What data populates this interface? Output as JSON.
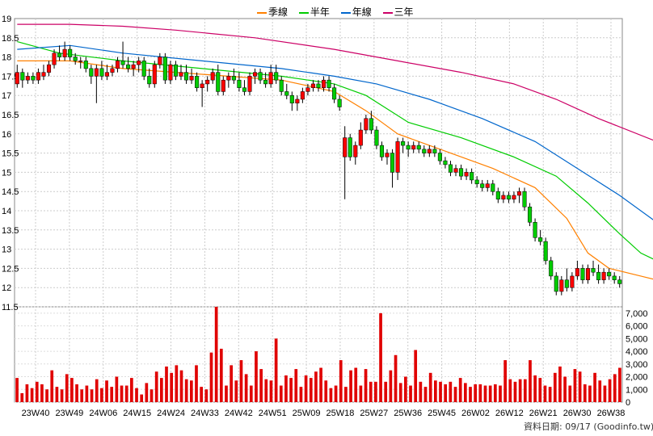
{
  "legend": [
    {
      "label": "季線",
      "color": "#ff8000"
    },
    {
      "label": "半年",
      "color": "#00cc00"
    },
    {
      "label": "年線",
      "color": "#0066cc"
    },
    {
      "label": "三年",
      "color": "#cc0066"
    }
  ],
  "footer": {
    "date": "資料日期: 09/17",
    "source": "(Goodinfo.tw)"
  },
  "chart_data": [
    {
      "type": "candlestick",
      "title": "",
      "price_axis": {
        "min": 11.5,
        "max": 19,
        "ticks": [
          "19",
          "18.5",
          "18",
          "17.5",
          "17",
          "16.5",
          "16",
          "15.5",
          "15",
          "14.5",
          "14",
          "13.5",
          "13",
          "12.5",
          "12",
          "11.5"
        ]
      },
      "x_ticks": [
        "23W40",
        "23W49",
        "24W06",
        "24W15",
        "24W24",
        "24W33",
        "24W42",
        "24W51",
        "25W09",
        "25W18",
        "25W27",
        "25W36",
        "25W45",
        "26W02",
        "26W12",
        "26W21",
        "26W30",
        "26W38"
      ],
      "ohlc": [
        [
          17.3,
          17.8,
          17.2,
          17.6
        ],
        [
          17.6,
          17.7,
          17.2,
          17.4
        ],
        [
          17.4,
          17.6,
          17.3,
          17.5
        ],
        [
          17.5,
          17.6,
          17.3,
          17.4
        ],
        [
          17.4,
          17.7,
          17.3,
          17.6
        ],
        [
          17.5,
          17.8,
          17.4,
          17.6
        ],
        [
          17.6,
          17.9,
          17.5,
          17.8
        ],
        [
          17.8,
          18.2,
          17.7,
          18.1
        ],
        [
          18.1,
          18.3,
          17.9,
          18.0
        ],
        [
          18.0,
          18.4,
          17.9,
          18.2
        ],
        [
          18.2,
          18.3,
          17.9,
          18.0
        ],
        [
          18.0,
          18.1,
          17.8,
          17.9
        ],
        [
          17.9,
          18.0,
          17.7,
          17.9
        ],
        [
          17.9,
          18.0,
          17.6,
          17.7
        ],
        [
          17.7,
          17.8,
          17.3,
          17.5
        ],
        [
          17.5,
          17.8,
          16.8,
          17.7
        ],
        [
          17.7,
          17.9,
          17.4,
          17.5
        ],
        [
          17.5,
          17.8,
          17.4,
          17.6
        ],
        [
          17.6,
          17.8,
          17.5,
          17.7
        ],
        [
          17.7,
          18.0,
          17.6,
          17.9
        ],
        [
          17.9,
          18.4,
          17.7,
          17.8
        ],
        [
          17.8,
          18.0,
          17.6,
          17.7
        ],
        [
          17.7,
          17.9,
          17.5,
          17.8
        ],
        [
          17.8,
          18.0,
          17.6,
          17.9
        ],
        [
          17.9,
          18.0,
          17.4,
          17.5
        ],
        [
          17.5,
          17.7,
          17.2,
          17.3
        ],
        [
          17.3,
          17.9,
          17.2,
          17.8
        ],
        [
          17.8,
          18.1,
          17.7,
          18.0
        ],
        [
          18.0,
          18.1,
          17.3,
          17.4
        ],
        [
          17.4,
          17.9,
          17.3,
          17.8
        ],
        [
          17.8,
          17.9,
          17.4,
          17.5
        ],
        [
          17.5,
          17.8,
          17.4,
          17.6
        ],
        [
          17.6,
          17.8,
          17.3,
          17.4
        ],
        [
          17.4,
          17.7,
          17.3,
          17.5
        ],
        [
          17.5,
          17.6,
          17.1,
          17.2
        ],
        [
          17.2,
          17.4,
          16.7,
          17.3
        ],
        [
          17.3,
          17.5,
          17.1,
          17.4
        ],
        [
          17.4,
          17.7,
          17.3,
          17.6
        ],
        [
          17.6,
          17.8,
          17.0,
          17.1
        ],
        [
          17.1,
          17.5,
          17.0,
          17.4
        ],
        [
          17.4,
          17.6,
          17.2,
          17.5
        ],
        [
          17.5,
          17.7,
          17.3,
          17.4
        ],
        [
          17.4,
          17.6,
          17.1,
          17.2
        ],
        [
          17.2,
          17.4,
          17.0,
          17.1
        ],
        [
          17.1,
          17.6,
          17.0,
          17.5
        ],
        [
          17.5,
          17.7,
          17.3,
          17.6
        ],
        [
          17.6,
          17.7,
          17.3,
          17.4
        ],
        [
          17.4,
          17.6,
          17.2,
          17.3
        ],
        [
          17.3,
          17.8,
          17.2,
          17.6
        ],
        [
          17.6,
          17.8,
          17.3,
          17.4
        ],
        [
          17.4,
          17.5,
          17.0,
          17.1
        ],
        [
          17.1,
          17.3,
          16.9,
          17.0
        ],
        [
          17.0,
          17.1,
          16.6,
          16.8
        ],
        [
          16.8,
          17.0,
          16.6,
          16.9
        ],
        [
          16.9,
          17.2,
          16.8,
          17.1
        ],
        [
          17.1,
          17.3,
          17.0,
          17.2
        ],
        [
          17.2,
          17.4,
          17.1,
          17.3
        ],
        [
          17.3,
          17.4,
          17.1,
          17.2
        ],
        [
          17.2,
          17.5,
          17.1,
          17.4
        ],
        [
          17.4,
          17.5,
          17.1,
          17.2
        ],
        [
          17.2,
          17.3,
          16.8,
          16.9
        ],
        [
          16.9,
          17.0,
          16.6,
          16.7
        ],
        [
          15.4,
          16.2,
          14.3,
          15.9
        ],
        [
          15.9,
          16.0,
          15.3,
          15.4
        ],
        [
          15.4,
          15.8,
          15.2,
          15.7
        ],
        [
          15.7,
          16.3,
          15.6,
          16.1
        ],
        [
          16.1,
          16.5,
          16.0,
          16.4
        ],
        [
          16.4,
          16.6,
          16.0,
          16.1
        ],
        [
          16.1,
          16.2,
          15.6,
          15.7
        ],
        [
          15.7,
          15.8,
          15.3,
          15.4
        ],
        [
          15.4,
          15.6,
          15.2,
          15.5
        ],
        [
          15.5,
          15.6,
          14.6,
          15.0
        ],
        [
          15.0,
          15.9,
          14.8,
          15.8
        ],
        [
          15.8,
          15.9,
          15.5,
          15.7
        ],
        [
          15.7,
          15.8,
          15.4,
          15.6
        ],
        [
          15.6,
          15.8,
          15.5,
          15.7
        ],
        [
          15.7,
          15.8,
          15.5,
          15.6
        ],
        [
          15.6,
          15.7,
          15.4,
          15.5
        ],
        [
          15.5,
          15.7,
          15.4,
          15.6
        ],
        [
          15.6,
          15.7,
          15.4,
          15.5
        ],
        [
          15.5,
          15.6,
          15.2,
          15.3
        ],
        [
          15.3,
          15.4,
          15.1,
          15.2
        ],
        [
          15.2,
          15.3,
          14.9,
          15.0
        ],
        [
          15.0,
          15.2,
          14.9,
          15.1
        ],
        [
          15.1,
          15.2,
          14.8,
          14.9
        ],
        [
          14.9,
          15.1,
          14.8,
          15.0
        ],
        [
          15.0,
          15.1,
          14.7,
          14.8
        ],
        [
          14.8,
          14.9,
          14.6,
          14.7
        ],
        [
          14.7,
          14.8,
          14.5,
          14.6
        ],
        [
          14.6,
          14.8,
          14.5,
          14.7
        ],
        [
          14.7,
          14.8,
          14.4,
          14.5
        ],
        [
          14.5,
          14.6,
          14.2,
          14.3
        ],
        [
          14.3,
          14.5,
          14.2,
          14.4
        ],
        [
          14.4,
          14.5,
          14.2,
          14.3
        ],
        [
          14.3,
          14.5,
          14.2,
          14.4
        ],
        [
          14.4,
          14.6,
          14.2,
          14.5
        ],
        [
          14.5,
          14.6,
          14.0,
          14.1
        ],
        [
          14.1,
          14.2,
          13.6,
          13.7
        ],
        [
          13.7,
          13.8,
          13.2,
          13.3
        ],
        [
          13.3,
          13.5,
          13.1,
          13.2
        ],
        [
          13.2,
          13.3,
          12.6,
          12.7
        ],
        [
          12.7,
          12.8,
          12.2,
          12.3
        ],
        [
          12.3,
          12.4,
          11.8,
          11.9
        ],
        [
          11.9,
          12.3,
          11.8,
          12.2
        ],
        [
          12.2,
          12.5,
          11.9,
          12.0
        ],
        [
          12.0,
          12.4,
          11.9,
          12.3
        ],
        [
          12.3,
          12.7,
          12.2,
          12.5
        ],
        [
          12.5,
          12.6,
          12.1,
          12.2
        ],
        [
          12.2,
          12.6,
          12.1,
          12.5
        ],
        [
          12.5,
          12.7,
          12.3,
          12.4
        ],
        [
          12.4,
          12.6,
          12.1,
          12.2
        ],
        [
          12.2,
          12.5,
          12.1,
          12.4
        ],
        [
          12.4,
          12.5,
          12.2,
          12.3
        ],
        [
          12.3,
          12.4,
          12.1,
          12.2
        ],
        [
          12.2,
          12.3,
          12.0,
          12.1
        ]
      ],
      "ma_quarter": [
        [
          0,
          17.9
        ],
        [
          10,
          17.9
        ],
        [
          20,
          17.7
        ],
        [
          30,
          17.6
        ],
        [
          40,
          17.5
        ],
        [
          50,
          17.4
        ],
        [
          60,
          17.1
        ],
        [
          66,
          16.6
        ],
        [
          72,
          16.0
        ],
        [
          80,
          15.6
        ],
        [
          90,
          15.1
        ],
        [
          98,
          14.6
        ],
        [
          104,
          13.8
        ],
        [
          108,
          12.9
        ],
        [
          112,
          12.5
        ],
        [
          118,
          12.3
        ],
        [
          121,
          12.2
        ]
      ],
      "ma_half": [
        [
          0,
          18.4
        ],
        [
          8,
          18.1
        ],
        [
          20,
          17.9
        ],
        [
          35,
          17.7
        ],
        [
          50,
          17.5
        ],
        [
          60,
          17.3
        ],
        [
          66,
          17.0
        ],
        [
          74,
          16.3
        ],
        [
          84,
          15.9
        ],
        [
          94,
          15.4
        ],
        [
          102,
          14.9
        ],
        [
          108,
          14.2
        ],
        [
          114,
          13.4
        ],
        [
          118,
          12.9
        ],
        [
          121,
          12.7
        ]
      ],
      "ma_year": [
        [
          0,
          18.2
        ],
        [
          10,
          18.3
        ],
        [
          20,
          18.1
        ],
        [
          35,
          17.9
        ],
        [
          50,
          17.7
        ],
        [
          60,
          17.5
        ],
        [
          68,
          17.3
        ],
        [
          78,
          16.9
        ],
        [
          88,
          16.4
        ],
        [
          98,
          15.8
        ],
        [
          106,
          15.1
        ],
        [
          114,
          14.4
        ],
        [
          121,
          13.7
        ]
      ],
      "ma_3yr": [
        [
          0,
          18.85
        ],
        [
          10,
          18.85
        ],
        [
          20,
          18.8
        ],
        [
          30,
          18.7
        ],
        [
          45,
          18.5
        ],
        [
          60,
          18.2
        ],
        [
          72,
          17.9
        ],
        [
          84,
          17.6
        ],
        [
          94,
          17.3
        ],
        [
          102,
          16.9
        ],
        [
          110,
          16.4
        ],
        [
          121,
          15.8
        ]
      ]
    },
    {
      "type": "bar",
      "title": "",
      "volume_axis": {
        "min": 0,
        "max": 7500,
        "ticks": [
          "7,000",
          "6,000",
          "5,000",
          "4,000",
          "3,000",
          "2,000",
          "1,000",
          "0"
        ]
      },
      "values": [
        1900,
        700,
        1400,
        1100,
        1600,
        1400,
        1000,
        2500,
        1200,
        1000,
        2200,
        1900,
        1400,
        1000,
        1300,
        1000,
        1800,
        1100,
        1700,
        1200,
        2000,
        1300,
        1300,
        1900,
        1100,
        600,
        1500,
        1000,
        2400,
        1900,
        2800,
        2300,
        2900,
        2500,
        1800,
        1700,
        2900,
        1200,
        1000,
        3900,
        7500,
        4200,
        1300,
        2900,
        1700,
        3300,
        2200,
        1300,
        4000,
        2600,
        1800,
        1700,
        5000,
        1300,
        2100,
        1900,
        2600,
        1200,
        2100,
        1900,
        2400,
        2700,
        1700,
        1100,
        1300,
        3300,
        1200,
        2500,
        2700,
        1300,
        2600,
        1600,
        1600,
        7000,
        1600,
        2500,
        3700,
        1500,
        2000,
        1300,
        4100,
        1600,
        1200,
        2300,
        1700,
        1600,
        1400,
        1600,
        1200,
        1900,
        1500,
        1200,
        1400,
        1400,
        1300,
        1300,
        1400,
        1300,
        3300,
        1800,
        1600,
        1800,
        1800,
        3300,
        2100,
        1900,
        1300,
        1200,
        2300,
        2800,
        2000,
        1300,
        2600,
        2400,
        1400,
        1300,
        2300,
        1700,
        1300,
        1800,
        2200,
        2700
      ]
    }
  ]
}
